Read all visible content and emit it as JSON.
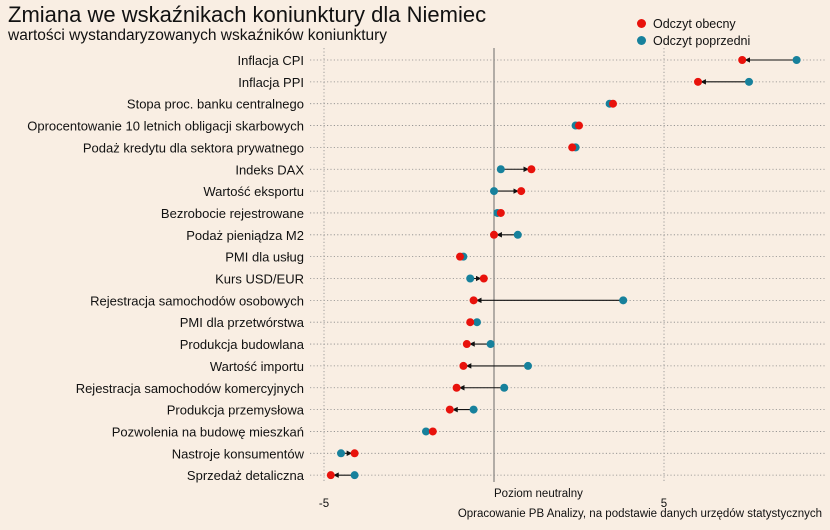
{
  "title": "Zmiana we wskaźnikach koniunktury dla Niemiec",
  "subtitle": "wartości wystandaryzowanych wskaźników koniunktury",
  "legend": {
    "current": "Odczyt obecny",
    "previous": "Odczyt poprzedni"
  },
  "colors": {
    "current": "#e8120c",
    "previous": "#17819c",
    "background": "#f9eee3"
  },
  "caption": "Opracowanie PB Analizy, na podstawie danych urzędów statystycznych",
  "neutral_label": "Poziom neutralny",
  "chart_data": {
    "type": "dumbbell",
    "title": "Zmiana we wskaźnikach koniunktury dla Niemiec",
    "subtitle": "wartości wystandaryzowanych wskaźników koniunktury",
    "xlim": [
      -5.2,
      9.4
    ],
    "x_ticks": [
      -5,
      0,
      5
    ],
    "x_tick_labels": [
      "-5",
      "",
      "5"
    ],
    "reference_line": 0,
    "grid": "dotted horizontal and vertical",
    "legend_position": "top-right",
    "series": [
      {
        "name": "Odczyt obecny",
        "color": "#e8120c"
      },
      {
        "name": "Odczyt poprzedni",
        "color": "#17819c"
      }
    ],
    "categories": [
      "Inflacja CPI",
      "Inflacja PPI",
      "Stopa proc. banku centralnego",
      "Oprocentowanie 10 letnich obligacji skarbowych",
      "Podaż kredytu dla sektora prywatnego",
      "Indeks DAX",
      "Wartość eksportu",
      "Bezrobocie rejestrowane",
      "Podaż pieniądza M2",
      "PMI dla usług",
      "Kurs USD/EUR",
      "Rejestracja samochodów osobowych",
      "PMI dla przetwórstwa",
      "Produkcja budowlana",
      "Wartość importu",
      "Rejestracja samochodów komercyjnych",
      "Produkcja przemysłowa",
      "Pozwolenia na budowę mieszkań",
      "Nastroje konsumentów",
      "Sprzedaż detaliczna"
    ],
    "current": [
      7.3,
      6.0,
      3.5,
      2.5,
      2.3,
      1.1,
      0.8,
      0.2,
      0.0,
      -1.0,
      -0.3,
      -0.6,
      -0.7,
      -0.8,
      -0.9,
      -1.1,
      -1.3,
      -1.8,
      -4.1,
      -4.8
    ],
    "previous": [
      8.9,
      7.5,
      3.4,
      2.4,
      2.4,
      0.2,
      0.0,
      0.1,
      0.7,
      -0.9,
      -0.7,
      3.8,
      -0.5,
      -0.1,
      1.0,
      0.3,
      -0.6,
      -2.0,
      -4.5,
      -4.1
    ]
  }
}
